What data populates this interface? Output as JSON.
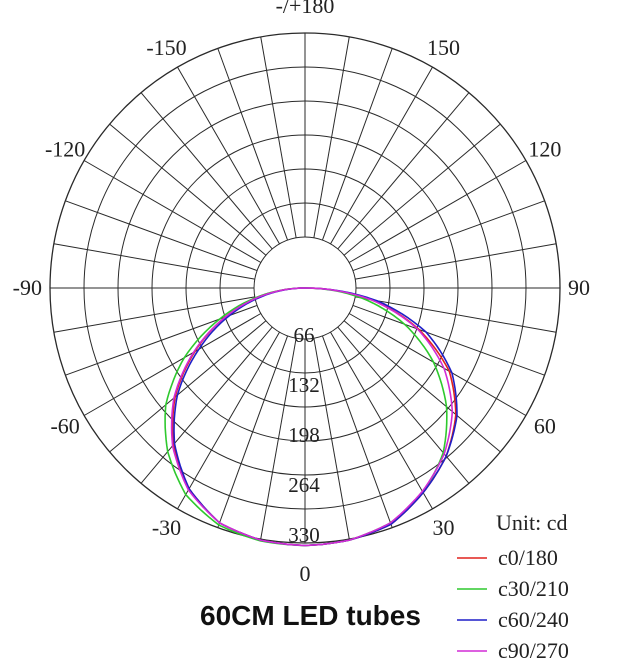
{
  "caption": "60CM LED tubes",
  "chart_data": {
    "type": "polar-line",
    "angle_labels": [
      "-/+180",
      "-150",
      "150",
      "-120",
      "120",
      "-90",
      "90",
      "-60",
      "60",
      "-30",
      "30",
      "0"
    ],
    "angle_values": [
      180,
      -150,
      150,
      -120,
      120,
      -90,
      90,
      -60,
      60,
      -30,
      30,
      0
    ],
    "radial_ticks": [
      66,
      132,
      198,
      264,
      330
    ],
    "radial_tick_labels": [
      "66",
      "132",
      "198",
      "264",
      "330"
    ],
    "rmax": 330,
    "legend_title": "Unit: cd",
    "legend_position": "bottom-right",
    "series": [
      {
        "name": "c0/180",
        "color": "#e0221d",
        "angles": [
          -90,
          -80,
          -70,
          -60,
          -50,
          -40,
          -30,
          -20,
          -10,
          0,
          10,
          20,
          30,
          40,
          50,
          60,
          70,
          80,
          90
        ],
        "values": [
          0,
          58,
          112,
          168,
          224,
          270,
          306,
          330,
          338,
          340,
          338,
          332,
          312,
          290,
          260,
          220,
          160,
          90,
          0
        ]
      },
      {
        "name": "c30/210",
        "color": "#2ec92e",
        "angles": [
          -90,
          -80,
          -70,
          -60,
          -50,
          -40,
          -30,
          -20,
          -10,
          0,
          10,
          20,
          30,
          40,
          50,
          60,
          70,
          80,
          90
        ],
        "values": [
          0,
          60,
          120,
          184,
          240,
          282,
          315,
          333,
          339,
          340,
          338,
          330,
          312,
          284,
          244,
          196,
          140,
          76,
          0
        ]
      },
      {
        "name": "c60/240",
        "color": "#1f1fc8",
        "angles": [
          -90,
          -80,
          -70,
          -60,
          -50,
          -40,
          -30,
          -20,
          -10,
          0,
          10,
          20,
          30,
          40,
          50,
          60,
          70,
          80,
          90
        ],
        "values": [
          0,
          52,
          106,
          162,
          220,
          268,
          306,
          330,
          338,
          340,
          338,
          332,
          312,
          290,
          262,
          224,
          170,
          96,
          0
        ]
      },
      {
        "name": "c90/270",
        "color": "#d22bd6",
        "angles": [
          -90,
          -80,
          -70,
          -60,
          -50,
          -40,
          -30,
          -20,
          -10,
          0,
          10,
          20,
          30,
          40,
          50,
          60,
          70,
          80,
          90
        ],
        "values": [
          0,
          56,
          112,
          170,
          226,
          272,
          308,
          330,
          338,
          340,
          338,
          330,
          310,
          286,
          254,
          212,
          158,
          88,
          0
        ]
      }
    ]
  }
}
